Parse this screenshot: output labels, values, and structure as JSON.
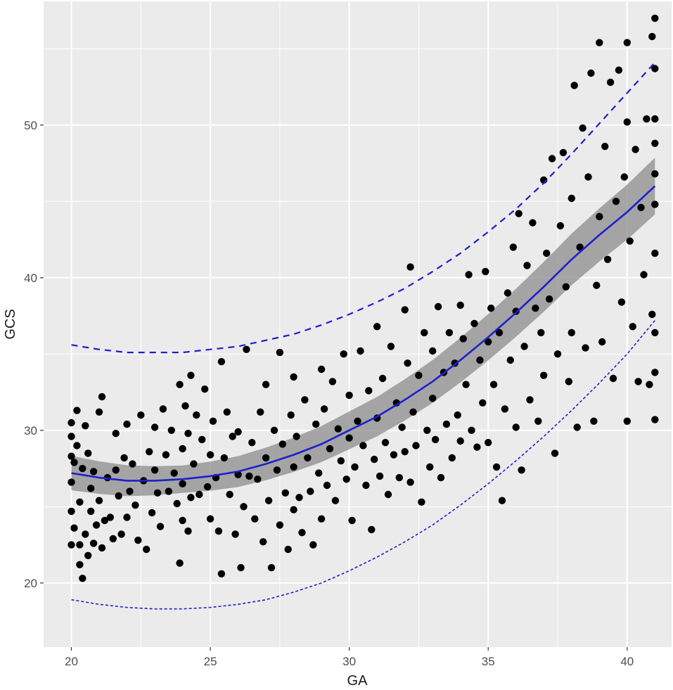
{
  "chart_data": {
    "type": "scatter",
    "title": "",
    "xlabel": "GA",
    "ylabel": "GCS",
    "xlim": [
      19.0,
      41.6
    ],
    "ylim": [
      15.8,
      58.1
    ],
    "x_ticks": [
      20,
      25,
      30,
      35,
      40
    ],
    "x_tick_labels": [
      "20",
      "25",
      "30",
      "35",
      "40"
    ],
    "y_ticks": [
      20,
      30,
      40,
      50
    ],
    "y_tick_labels": [
      "20",
      "30",
      "40",
      "50"
    ],
    "grid": true,
    "legend": "none",
    "colors": {
      "panel_background": "#ebebeb",
      "grid": "#ffffff",
      "points": "#000000",
      "fit_line": "#1f1fcc",
      "confidence_band": "#8c8c8c",
      "reference_lines": "#1f1fcc"
    },
    "fit_curve": {
      "name": "",
      "style": "solid",
      "x": [
        20,
        21,
        22,
        23,
        24,
        25,
        26,
        27,
        28,
        29,
        30,
        31,
        32,
        33,
        34,
        35,
        36,
        37,
        38,
        39,
        40,
        41
      ],
      "y": [
        27.2,
        26.9,
        26.7,
        26.7,
        26.8,
        27.0,
        27.3,
        27.8,
        28.4,
        29.1,
        30.0,
        30.9,
        32.0,
        33.2,
        34.6,
        36.1,
        37.7,
        39.4,
        41.2,
        42.8,
        44.3,
        46.0
      ]
    },
    "confidence_band_width": 0.9,
    "upper_reference": {
      "style": "dashed",
      "x": [
        20,
        21,
        22,
        23,
        24,
        25,
        26,
        27,
        28,
        29,
        30,
        31,
        32,
        33,
        34,
        35,
        36,
        37,
        38,
        39,
        40,
        41
      ],
      "y": [
        35.6,
        35.3,
        35.1,
        35.1,
        35.1,
        35.3,
        35.5,
        35.9,
        36.3,
        36.9,
        37.6,
        38.4,
        39.3,
        40.4,
        41.6,
        43.0,
        44.5,
        46.2,
        48.1,
        50.1,
        52.1,
        54.1
      ]
    },
    "lower_reference": {
      "style": "dotted",
      "x": [
        20,
        21,
        22,
        23,
        24,
        25,
        26,
        27,
        28,
        29,
        30,
        31,
        32,
        33,
        34,
        35,
        36,
        37,
        38,
        39,
        40,
        41
      ],
      "y": [
        18.9,
        18.6,
        18.4,
        18.3,
        18.3,
        18.4,
        18.6,
        18.9,
        19.4,
        20.0,
        20.8,
        21.7,
        22.7,
        23.8,
        25.1,
        26.5,
        28.0,
        29.6,
        31.3,
        33.1,
        35.0,
        37.2
      ]
    },
    "points": [
      [
        20.0,
        22.5
      ],
      [
        20.0,
        24.7
      ],
      [
        20.0,
        26.6
      ],
      [
        20.0,
        28.3
      ],
      [
        20.0,
        29.6
      ],
      [
        20.0,
        30.5
      ],
      [
        20.1,
        23.6
      ],
      [
        20.1,
        27.9
      ],
      [
        20.2,
        31.3
      ],
      [
        20.2,
        29.0
      ],
      [
        20.3,
        21.2
      ],
      [
        20.3,
        22.5
      ],
      [
        20.3,
        25.3
      ],
      [
        20.4,
        20.3
      ],
      [
        20.4,
        27.5
      ],
      [
        20.5,
        23.2
      ],
      [
        20.5,
        30.3
      ],
      [
        20.6,
        21.8
      ],
      [
        20.6,
        28.5
      ],
      [
        20.7,
        24.7
      ],
      [
        20.7,
        26.2
      ],
      [
        20.8,
        22.6
      ],
      [
        20.8,
        27.3
      ],
      [
        20.9,
        23.8
      ],
      [
        21.0,
        25.4
      ],
      [
        21.0,
        31.2
      ],
      [
        21.1,
        22.3
      ],
      [
        21.1,
        32.2
      ],
      [
        21.2,
        24.1
      ],
      [
        21.3,
        26.9
      ],
      [
        21.4,
        24.3
      ],
      [
        21.5,
        22.9
      ],
      [
        21.6,
        27.4
      ],
      [
        21.6,
        29.8
      ],
      [
        21.7,
        25.7
      ],
      [
        21.8,
        23.2
      ],
      [
        21.9,
        28.2
      ],
      [
        22.0,
        24.3
      ],
      [
        22.0,
        30.4
      ],
      [
        22.1,
        26.0
      ],
      [
        22.2,
        27.8
      ],
      [
        22.3,
        25.1
      ],
      [
        22.4,
        22.8
      ],
      [
        22.5,
        31.0
      ],
      [
        22.6,
        26.7
      ],
      [
        22.7,
        22.2
      ],
      [
        22.8,
        28.6
      ],
      [
        22.9,
        24.6
      ],
      [
        23.0,
        27.4
      ],
      [
        23.0,
        30.2
      ],
      [
        23.1,
        25.9
      ],
      [
        23.2,
        23.7
      ],
      [
        23.3,
        31.4
      ],
      [
        23.4,
        28.4
      ],
      [
        23.5,
        26.0
      ],
      [
        23.6,
        30.0
      ],
      [
        23.7,
        27.2
      ],
      [
        23.8,
        25.2
      ],
      [
        23.9,
        21.3
      ],
      [
        23.9,
        33.0
      ],
      [
        24.0,
        24.1
      ],
      [
        24.0,
        26.5
      ],
      [
        24.0,
        28.8
      ],
      [
        24.1,
        31.6
      ],
      [
        24.2,
        23.4
      ],
      [
        24.2,
        29.8
      ],
      [
        24.3,
        25.6
      ],
      [
        24.3,
        33.6
      ],
      [
        24.4,
        27.8
      ],
      [
        24.5,
        31.0
      ],
      [
        24.6,
        25.8
      ],
      [
        24.7,
        29.4
      ],
      [
        24.8,
        32.7
      ],
      [
        24.9,
        26.3
      ],
      [
        25.0,
        24.2
      ],
      [
        25.0,
        28.4
      ],
      [
        25.1,
        30.6
      ],
      [
        25.2,
        26.9
      ],
      [
        25.3,
        23.4
      ],
      [
        25.4,
        20.6
      ],
      [
        25.4,
        34.5
      ],
      [
        25.5,
        28.2
      ],
      [
        25.6,
        31.2
      ],
      [
        25.7,
        25.8
      ],
      [
        25.8,
        29.6
      ],
      [
        25.9,
        23.2
      ],
      [
        26.0,
        27.1
      ],
      [
        26.0,
        29.9
      ],
      [
        26.1,
        21.0
      ],
      [
        26.2,
        25.0
      ],
      [
        26.3,
        35.3
      ],
      [
        26.4,
        27.0
      ],
      [
        26.5,
        29.2
      ],
      [
        26.6,
        24.2
      ],
      [
        26.7,
        26.8
      ],
      [
        26.8,
        31.2
      ],
      [
        26.9,
        22.7
      ],
      [
        27.0,
        28.2
      ],
      [
        27.0,
        33.0
      ],
      [
        27.1,
        25.4
      ],
      [
        27.2,
        21.0
      ],
      [
        27.3,
        30.0
      ],
      [
        27.4,
        27.4
      ],
      [
        27.5,
        23.8
      ],
      [
        27.5,
        35.1
      ],
      [
        27.6,
        29.1
      ],
      [
        27.7,
        25.9
      ],
      [
        27.8,
        22.2
      ],
      [
        27.9,
        31.0
      ],
      [
        28.0,
        24.8
      ],
      [
        28.0,
        27.6
      ],
      [
        28.0,
        33.5
      ],
      [
        28.1,
        29.6
      ],
      [
        28.2,
        25.6
      ],
      [
        28.3,
        23.3
      ],
      [
        28.4,
        32.0
      ],
      [
        28.5,
        28.2
      ],
      [
        28.6,
        26.0
      ],
      [
        28.7,
        22.5
      ],
      [
        28.8,
        30.4
      ],
      [
        28.9,
        27.2
      ],
      [
        29.0,
        24.2
      ],
      [
        29.0,
        34.0
      ],
      [
        29.1,
        31.4
      ],
      [
        29.2,
        26.4
      ],
      [
        29.3,
        28.8
      ],
      [
        29.4,
        33.2
      ],
      [
        29.5,
        25.4
      ],
      [
        29.6,
        30.1
      ],
      [
        29.7,
        28.0
      ],
      [
        29.8,
        35.0
      ],
      [
        29.9,
        26.8
      ],
      [
        30.0,
        29.5
      ],
      [
        30.0,
        32.3
      ],
      [
        30.1,
        24.1
      ],
      [
        30.2,
        27.6
      ],
      [
        30.3,
        30.6
      ],
      [
        30.4,
        35.2
      ],
      [
        30.5,
        29.0
      ],
      [
        30.6,
        26.4
      ],
      [
        30.7,
        32.6
      ],
      [
        30.8,
        23.5
      ],
      [
        30.9,
        28.1
      ],
      [
        31.0,
        30.8
      ],
      [
        31.0,
        36.8
      ],
      [
        31.1,
        27.0
      ],
      [
        31.2,
        33.4
      ],
      [
        31.3,
        29.2
      ],
      [
        31.4,
        25.8
      ],
      [
        31.5,
        35.5
      ],
      [
        31.6,
        28.4
      ],
      [
        31.7,
        31.8
      ],
      [
        31.8,
        26.9
      ],
      [
        31.9,
        30.2
      ],
      [
        32.0,
        37.9
      ],
      [
        32.0,
        28.6
      ],
      [
        32.1,
        34.4
      ],
      [
        32.2,
        40.7
      ],
      [
        32.2,
        26.6
      ],
      [
        32.3,
        31.2
      ],
      [
        32.4,
        29.0
      ],
      [
        32.5,
        33.6
      ],
      [
        32.6,
        25.3
      ],
      [
        32.7,
        36.4
      ],
      [
        32.8,
        30.0
      ],
      [
        32.9,
        27.6
      ],
      [
        33.0,
        35.2
      ],
      [
        33.0,
        32.1
      ],
      [
        33.1,
        29.4
      ],
      [
        33.2,
        38.1
      ],
      [
        33.3,
        26.9
      ],
      [
        33.4,
        33.8
      ],
      [
        33.5,
        30.4
      ],
      [
        33.6,
        36.4
      ],
      [
        33.7,
        28.2
      ],
      [
        33.8,
        34.4
      ],
      [
        33.9,
        31.0
      ],
      [
        34.0,
        38.2
      ],
      [
        34.0,
        29.3
      ],
      [
        34.1,
        36.0
      ],
      [
        34.2,
        33.0
      ],
      [
        34.3,
        40.2
      ],
      [
        34.4,
        30.0
      ],
      [
        34.5,
        37.0
      ],
      [
        34.6,
        28.9
      ],
      [
        34.7,
        34.6
      ],
      [
        34.8,
        31.8
      ],
      [
        34.9,
        40.4
      ],
      [
        35.0,
        35.8
      ],
      [
        35.0,
        29.2
      ],
      [
        35.1,
        38.0
      ],
      [
        35.2,
        33.0
      ],
      [
        35.3,
        27.6
      ],
      [
        35.4,
        36.4
      ],
      [
        35.5,
        25.4
      ],
      [
        35.6,
        31.4
      ],
      [
        35.7,
        39.0
      ],
      [
        35.8,
        34.6
      ],
      [
        35.9,
        42.0
      ],
      [
        36.0,
        30.2
      ],
      [
        36.0,
        37.8
      ],
      [
        36.1,
        44.2
      ],
      [
        36.2,
        27.4
      ],
      [
        36.3,
        35.5
      ],
      [
        36.4,
        40.8
      ],
      [
        36.5,
        32.0
      ],
      [
        36.6,
        43.6
      ],
      [
        36.7,
        38.0
      ],
      [
        36.8,
        30.6
      ],
      [
        36.9,
        36.4
      ],
      [
        37.0,
        46.4
      ],
      [
        37.0,
        33.6
      ],
      [
        37.1,
        41.6
      ],
      [
        37.2,
        38.6
      ],
      [
        37.3,
        47.8
      ],
      [
        37.4,
        28.5
      ],
      [
        37.5,
        35.0
      ],
      [
        37.6,
        43.4
      ],
      [
        37.7,
        48.2
      ],
      [
        37.8,
        39.4
      ],
      [
        37.9,
        33.2
      ],
      [
        38.0,
        45.2
      ],
      [
        38.0,
        36.4
      ],
      [
        38.1,
        52.6
      ],
      [
        38.2,
        30.2
      ],
      [
        38.3,
        42.0
      ],
      [
        38.4,
        49.8
      ],
      [
        38.5,
        35.4
      ],
      [
        38.6,
        46.6
      ],
      [
        38.7,
        53.4
      ],
      [
        38.8,
        30.6
      ],
      [
        38.9,
        39.5
      ],
      [
        39.0,
        44.0
      ],
      [
        39.0,
        55.4
      ],
      [
        39.1,
        35.8
      ],
      [
        39.2,
        48.6
      ],
      [
        39.3,
        41.2
      ],
      [
        39.4,
        52.8
      ],
      [
        39.5,
        33.4
      ],
      [
        39.6,
        45.0
      ],
      [
        39.7,
        53.6
      ],
      [
        39.8,
        38.4
      ],
      [
        39.9,
        46.6
      ],
      [
        40.0,
        30.6
      ],
      [
        40.0,
        50.2
      ],
      [
        40.0,
        55.4
      ],
      [
        40.1,
        42.4
      ],
      [
        40.2,
        36.8
      ],
      [
        40.3,
        48.4
      ],
      [
        40.4,
        33.2
      ],
      [
        40.5,
        44.6
      ],
      [
        40.6,
        40.2
      ],
      [
        40.7,
        50.4
      ],
      [
        40.8,
        33.0
      ],
      [
        40.9,
        55.8
      ],
      [
        40.9,
        37.6
      ],
      [
        41.0,
        46.8
      ],
      [
        41.0,
        41.6
      ],
      [
        41.0,
        30.7
      ],
      [
        41.0,
        57.0
      ],
      [
        41.0,
        33.8
      ],
      [
        41.0,
        44.8
      ],
      [
        41.0,
        36.4
      ],
      [
        41.0,
        53.7
      ],
      [
        41.0,
        50.4
      ],
      [
        41.0,
        48.8
      ]
    ]
  }
}
